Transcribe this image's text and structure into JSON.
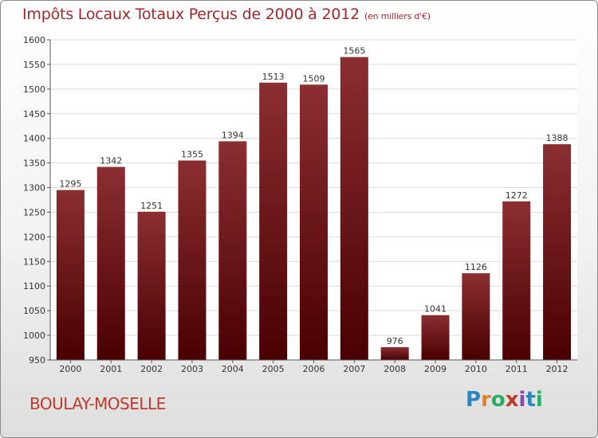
{
  "title": "Impôts Locaux Totaux Perçus de 2000 à 2012",
  "unit": "(en milliers d'€)",
  "place": "BOULAY-MOSELLE",
  "logo": {
    "chars": [
      "P",
      "r",
      "o",
      "x",
      "i",
      "t",
      "i"
    ],
    "colors": [
      "#2e86c1",
      "#e67e22",
      "#27ae60",
      "#c0392b",
      "#8e44ad",
      "#2e86c1",
      "#27ae60"
    ]
  },
  "colors": {
    "bar_top": "#8b2e32",
    "bar_bottom": "#4a0000",
    "title": "#a0282c"
  },
  "chart_data": {
    "type": "bar",
    "title": "Impôts Locaux Totaux Perçus de 2000 à 2012",
    "xlabel": "",
    "ylabel": "",
    "categories": [
      "2000",
      "2001",
      "2002",
      "2003",
      "2004",
      "2005",
      "2006",
      "2007",
      "2008",
      "2009",
      "2010",
      "2011",
      "2012"
    ],
    "values": [
      1295,
      1342,
      1251,
      1355,
      1394,
      1513,
      1509,
      1565,
      976,
      1041,
      1126,
      1272,
      1388
    ],
    "ylim": [
      950,
      1600
    ],
    "yticks": [
      950,
      1000,
      1050,
      1100,
      1150,
      1200,
      1250,
      1300,
      1350,
      1400,
      1450,
      1500,
      1550,
      1600
    ],
    "grid": true
  }
}
